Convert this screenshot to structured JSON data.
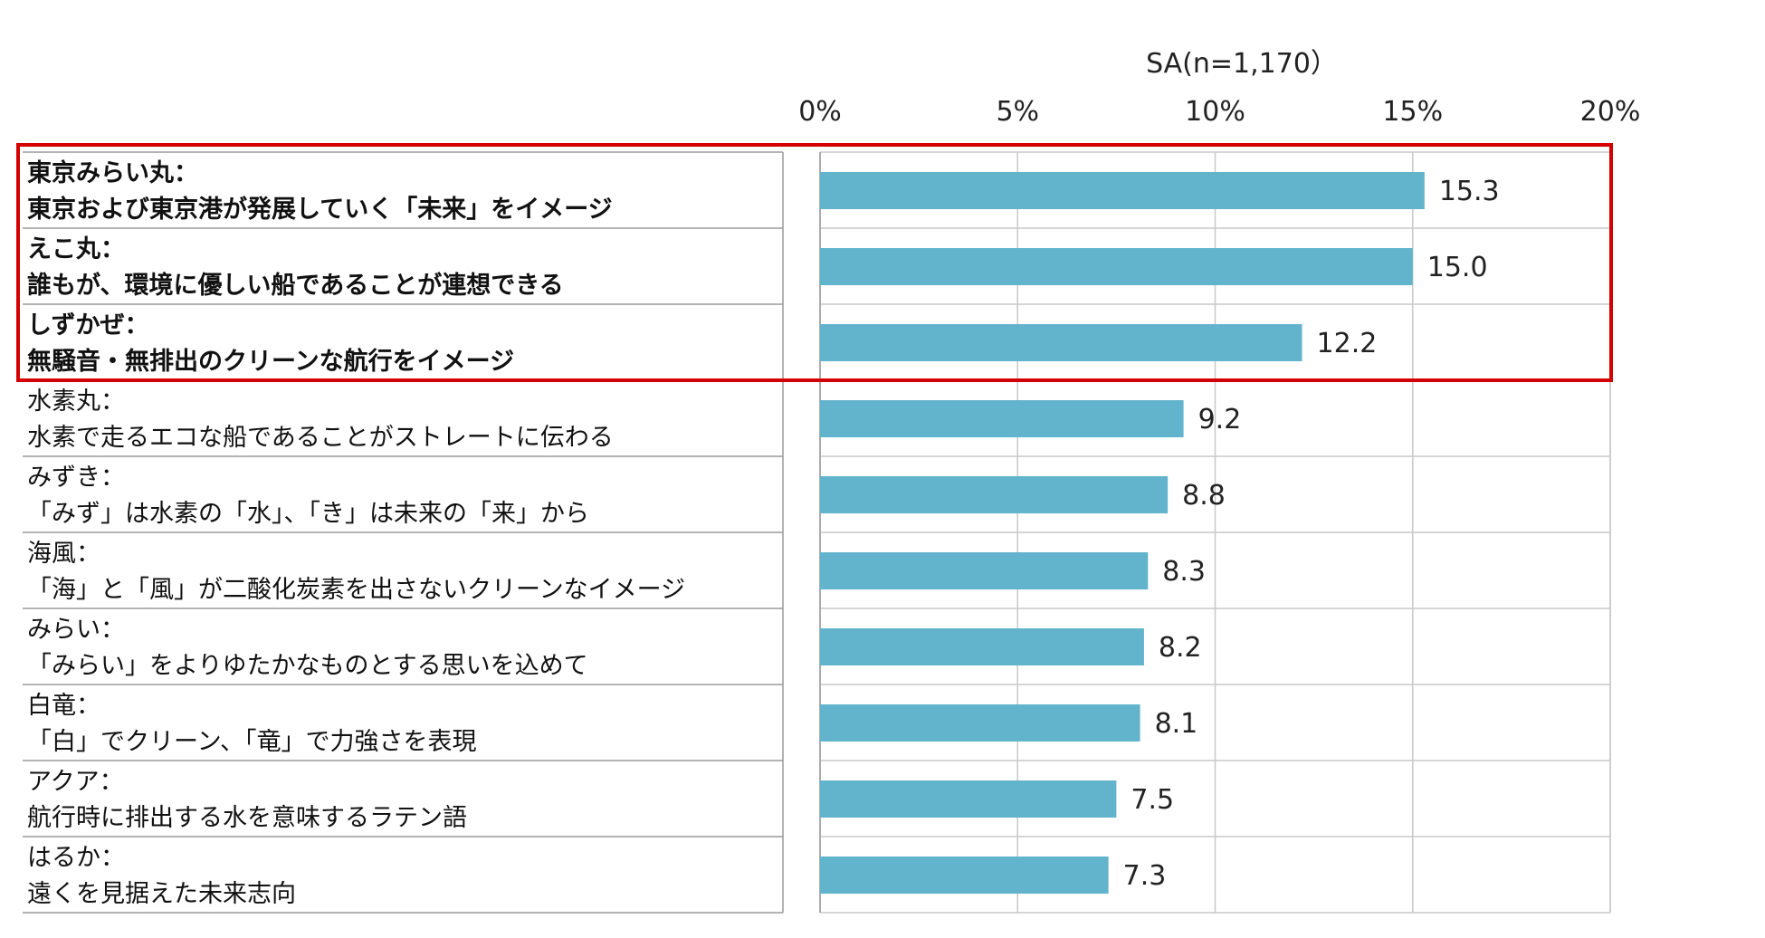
{
  "chart_data": {
    "type": "bar",
    "orientation": "horizontal",
    "sample_note": "SA(n=1,170）",
    "unit": "%",
    "xlim": [
      0,
      20
    ],
    "x_ticks": [
      "0%",
      "5%",
      "10%",
      "15%",
      "20%"
    ],
    "grid": true,
    "bar_color": "#62b3cc",
    "highlight_color": "#d40000",
    "categories": [
      {
        "name": "東京みらい丸：",
        "desc": "東京および東京港が発展していく「未来」をイメージ",
        "value": 15.3,
        "value_label": "15.3",
        "highlight": true
      },
      {
        "name": "えこ丸：",
        "desc": "誰もが、環境に優しい船であることが連想できる",
        "value": 15.0,
        "value_label": "15.0",
        "highlight": true
      },
      {
        "name": "しずかぜ：",
        "desc": "無騒音・無排出のクリーンな航行をイメージ",
        "value": 12.2,
        "value_label": "12.2",
        "highlight": true
      },
      {
        "name": "水素丸：",
        "desc": "水素で走るエコな船であることがストレートに伝わる",
        "value": 9.2,
        "value_label": "9.2",
        "highlight": false
      },
      {
        "name": "みずき：",
        "desc": "「みず」は水素の「水」、「き」は未来の「来」から",
        "value": 8.8,
        "value_label": "8.8",
        "highlight": false
      },
      {
        "name": "海風：",
        "desc": "「海」と「風」が二酸化炭素を出さないクリーンなイメージ",
        "value": 8.3,
        "value_label": "8.3",
        "highlight": false
      },
      {
        "name": "みらい：",
        "desc": "「みらい」をよりゆたかなものとする思いを込めて",
        "value": 8.2,
        "value_label": "8.2",
        "highlight": false
      },
      {
        "name": "白竜：",
        "desc": "「白」でクリーン、「竜」で力強さを表現",
        "value": 8.1,
        "value_label": "8.1",
        "highlight": false
      },
      {
        "name": "アクア：",
        "desc": "航行時に排出する水を意味するラテン語",
        "value": 7.5,
        "value_label": "7.5",
        "highlight": false
      },
      {
        "name": "はるか：",
        "desc": "遠くを見据えた未来志向",
        "value": 7.3,
        "value_label": "7.3",
        "highlight": false
      }
    ]
  }
}
